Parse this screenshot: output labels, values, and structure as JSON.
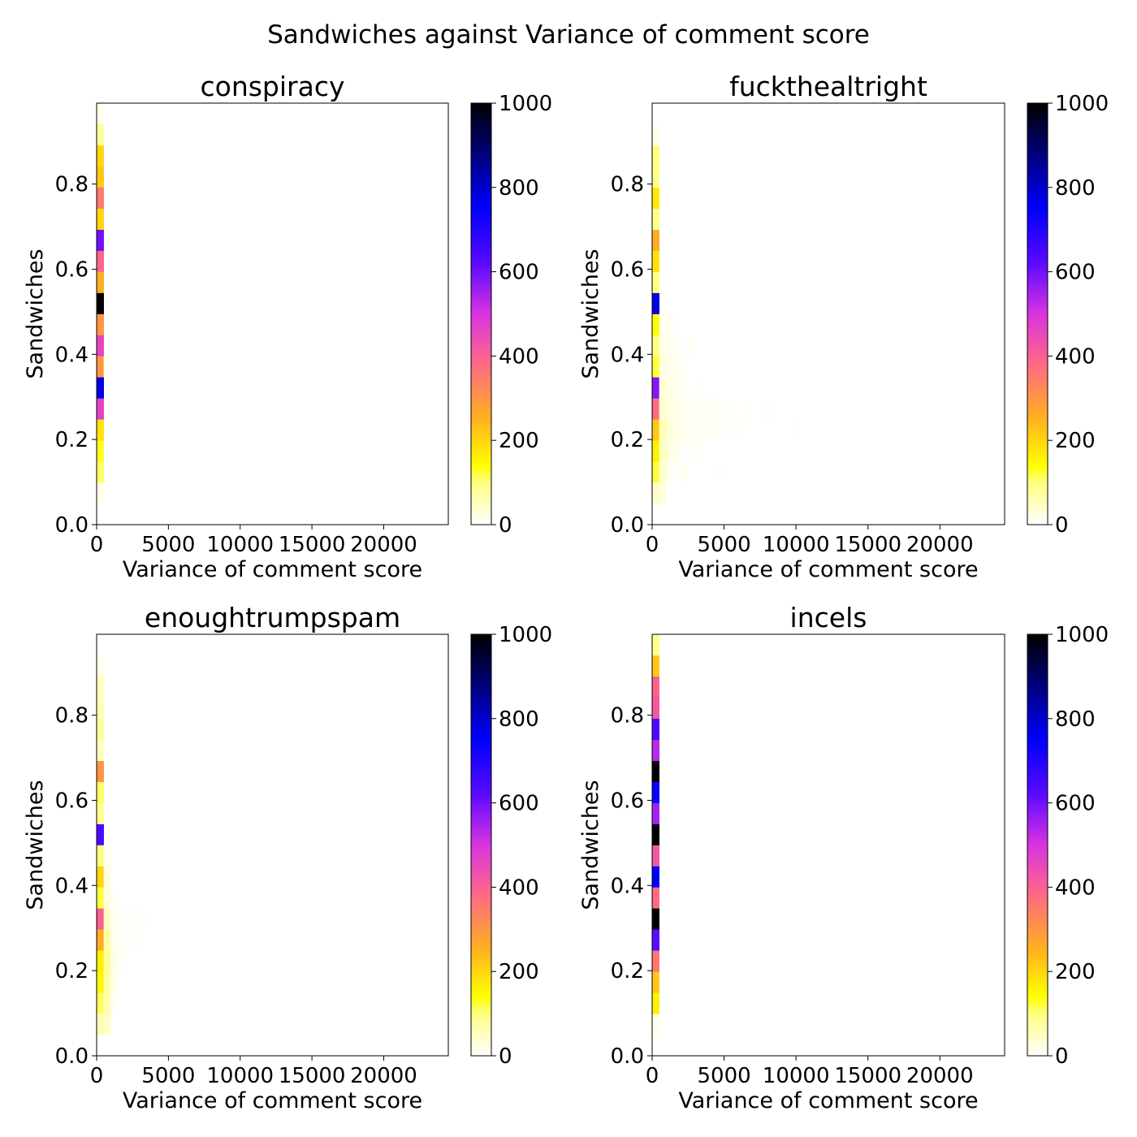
{
  "figure": {
    "title": "Sandwiches against Variance of comment score"
  },
  "chart_data": [
    {
      "type": "heatmap",
      "title": "conspiracy",
      "xlabel": "Variance of comment score",
      "ylabel": "Sandwiches",
      "xlim": [
        0,
        24500
      ],
      "ylim": [
        0,
        0.99
      ],
      "xticks": [
        0,
        5000,
        10000,
        15000,
        20000
      ],
      "xtick_labels": [
        "0",
        "5000",
        "10000",
        "15000",
        "20000"
      ],
      "yticks": [
        0.0,
        0.2,
        0.4,
        0.6,
        0.8
      ],
      "ytick_labels": [
        "0.0",
        "0.2",
        "0.4",
        "0.6",
        "0.8"
      ],
      "x_bin_width": 490,
      "y_bin_width": 0.0495,
      "colorbar": {
        "min": 0,
        "max": 1000,
        "ticks": [
          0,
          200,
          400,
          600,
          800,
          1000
        ],
        "tick_labels": [
          "0",
          "200",
          "400",
          "600",
          "800",
          "1000"
        ],
        "colormap": "gnuplot2_r"
      },
      "cells": [
        {
          "x0": 0,
          "y0": 0.0495,
          "count": 20
        },
        {
          "x0": 0,
          "y0": 0.099,
          "count": 110
        },
        {
          "x0": 0,
          "y0": 0.1485,
          "count": 130
        },
        {
          "x0": 0,
          "y0": 0.198,
          "count": 180
        },
        {
          "x0": 0,
          "y0": 0.2475,
          "count": 470
        },
        {
          "x0": 0,
          "y0": 0.297,
          "count": 780
        },
        {
          "x0": 0,
          "y0": 0.3465,
          "count": 300
        },
        {
          "x0": 0,
          "y0": 0.396,
          "count": 460
        },
        {
          "x0": 0,
          "y0": 0.4455,
          "count": 300
        },
        {
          "x0": 0,
          "y0": 0.495,
          "count": 1000
        },
        {
          "x0": 0,
          "y0": 0.5445,
          "count": 260
        },
        {
          "x0": 0,
          "y0": 0.594,
          "count": 390
        },
        {
          "x0": 0,
          "y0": 0.6435,
          "count": 600
        },
        {
          "x0": 0,
          "y0": 0.693,
          "count": 200
        },
        {
          "x0": 0,
          "y0": 0.7425,
          "count": 350
        },
        {
          "x0": 0,
          "y0": 0.792,
          "count": 220
        },
        {
          "x0": 0,
          "y0": 0.8415,
          "count": 200
        },
        {
          "x0": 0,
          "y0": 0.891,
          "count": 80
        },
        {
          "x0": 0,
          "y0": 0.9405,
          "count": 15
        },
        {
          "x0": 490,
          "y0": 0.3465,
          "count": 10
        }
      ]
    },
    {
      "type": "heatmap",
      "title": "fuckthealtright",
      "xlabel": "Variance of comment score",
      "ylabel": "Sandwiches",
      "xlim": [
        0,
        24500
      ],
      "ylim": [
        0,
        0.99
      ],
      "xticks": [
        0,
        5000,
        10000,
        15000,
        20000
      ],
      "xtick_labels": [
        "0",
        "5000",
        "10000",
        "15000",
        "20000"
      ],
      "yticks": [
        0.0,
        0.2,
        0.4,
        0.6,
        0.8
      ],
      "ytick_labels": [
        "0.0",
        "0.2",
        "0.4",
        "0.6",
        "0.8"
      ],
      "x_bin_width": 490,
      "y_bin_width": 0.0495,
      "colorbar": {
        "min": 0,
        "max": 1000,
        "ticks": [
          0,
          200,
          400,
          600,
          800,
          1000
        ],
        "tick_labels": [
          "0",
          "200",
          "400",
          "600",
          "800",
          "1000"
        ],
        "colormap": "gnuplot2_r"
      },
      "cells": [
        {
          "x0": 0,
          "y0": 0.0495,
          "count": 40
        },
        {
          "x0": 0,
          "y0": 0.099,
          "count": 120
        },
        {
          "x0": 0,
          "y0": 0.1485,
          "count": 160
        },
        {
          "x0": 0,
          "y0": 0.198,
          "count": 220
        },
        {
          "x0": 0,
          "y0": 0.2475,
          "count": 380
        },
        {
          "x0": 0,
          "y0": 0.297,
          "count": 580
        },
        {
          "x0": 0,
          "y0": 0.3465,
          "count": 120
        },
        {
          "x0": 0,
          "y0": 0.396,
          "count": 100
        },
        {
          "x0": 0,
          "y0": 0.4455,
          "count": 140
        },
        {
          "x0": 0,
          "y0": 0.495,
          "count": 780
        },
        {
          "x0": 0,
          "y0": 0.5445,
          "count": 100
        },
        {
          "x0": 0,
          "y0": 0.594,
          "count": 180
        },
        {
          "x0": 0,
          "y0": 0.6435,
          "count": 260
        },
        {
          "x0": 0,
          "y0": 0.693,
          "count": 90
        },
        {
          "x0": 0,
          "y0": 0.7425,
          "count": 170
        },
        {
          "x0": 0,
          "y0": 0.792,
          "count": 90
        },
        {
          "x0": 0,
          "y0": 0.8415,
          "count": 100
        },
        {
          "x0": 0,
          "y0": 0.891,
          "count": 20
        },
        {
          "x0": 490,
          "y0": 0.0495,
          "count": 30
        },
        {
          "x0": 490,
          "y0": 0.099,
          "count": 40
        },
        {
          "x0": 490,
          "y0": 0.1485,
          "count": 50
        },
        {
          "x0": 490,
          "y0": 0.198,
          "count": 60
        },
        {
          "x0": 490,
          "y0": 0.2475,
          "count": 40
        },
        {
          "x0": 490,
          "y0": 0.297,
          "count": 30
        },
        {
          "x0": 490,
          "y0": 0.3465,
          "count": 25
        },
        {
          "x0": 490,
          "y0": 0.396,
          "count": 20
        },
        {
          "x0": 490,
          "y0": 0.4455,
          "count": 15
        },
        {
          "x0": 980,
          "y0": 0.099,
          "count": 15
        },
        {
          "x0": 980,
          "y0": 0.1485,
          "count": 25
        },
        {
          "x0": 980,
          "y0": 0.198,
          "count": 30
        },
        {
          "x0": 980,
          "y0": 0.2475,
          "count": 25
        },
        {
          "x0": 980,
          "y0": 0.297,
          "count": 20
        },
        {
          "x0": 980,
          "y0": 0.3465,
          "count": 15
        },
        {
          "x0": 980,
          "y0": 0.396,
          "count": 12
        },
        {
          "x0": 980,
          "y0": 0.4455,
          "count": 10
        },
        {
          "x0": 1470,
          "y0": 0.1485,
          "count": 15
        },
        {
          "x0": 1470,
          "y0": 0.198,
          "count": 18
        },
        {
          "x0": 1470,
          "y0": 0.2475,
          "count": 15
        },
        {
          "x0": 1470,
          "y0": 0.297,
          "count": 12
        },
        {
          "x0": 1470,
          "y0": 0.3465,
          "count": 10
        },
        {
          "x0": 1470,
          "y0": 0.396,
          "count": 8
        },
        {
          "x0": 1960,
          "y0": 0.099,
          "count": 10
        },
        {
          "x0": 1960,
          "y0": 0.198,
          "count": 12
        },
        {
          "x0": 1960,
          "y0": 0.2475,
          "count": 10
        },
        {
          "x0": 1960,
          "y0": 0.297,
          "count": 8
        },
        {
          "x0": 1960,
          "y0": 0.3465,
          "count": 8
        },
        {
          "x0": 2450,
          "y0": 0.1485,
          "count": 8
        },
        {
          "x0": 2450,
          "y0": 0.198,
          "count": 10
        },
        {
          "x0": 2450,
          "y0": 0.2475,
          "count": 8
        },
        {
          "x0": 2450,
          "y0": 0.396,
          "count": 6
        },
        {
          "x0": 2940,
          "y0": 0.1485,
          "count": 6
        },
        {
          "x0": 2940,
          "y0": 0.198,
          "count": 8
        },
        {
          "x0": 2940,
          "y0": 0.2475,
          "count": 8
        },
        {
          "x0": 2940,
          "y0": 0.297,
          "count": 6
        },
        {
          "x0": 3430,
          "y0": 0.198,
          "count": 7
        },
        {
          "x0": 3430,
          "y0": 0.2475,
          "count": 6
        },
        {
          "x0": 3920,
          "y0": 0.198,
          "count": 6
        },
        {
          "x0": 3920,
          "y0": 0.2475,
          "count": 6
        },
        {
          "x0": 4410,
          "y0": 0.099,
          "count": 5
        },
        {
          "x0": 4410,
          "y0": 0.198,
          "count": 5
        },
        {
          "x0": 4410,
          "y0": 0.2475,
          "count": 6
        },
        {
          "x0": 4900,
          "y0": 0.198,
          "count": 5
        },
        {
          "x0": 5390,
          "y0": 0.2475,
          "count": 5
        },
        {
          "x0": 5880,
          "y0": 0.198,
          "count": 5
        },
        {
          "x0": 6370,
          "y0": 0.2475,
          "count": 4
        },
        {
          "x0": 7840,
          "y0": 0.2475,
          "count": 5
        },
        {
          "x0": 9800,
          "y0": 0.198,
          "count": 4
        }
      ]
    },
    {
      "type": "heatmap",
      "title": "enoughtrumpspam",
      "xlabel": "Variance of comment score",
      "ylabel": "Sandwiches",
      "xlim": [
        0,
        24500
      ],
      "ylim": [
        0,
        0.99
      ],
      "xticks": [
        0,
        5000,
        10000,
        15000,
        20000
      ],
      "xtick_labels": [
        "0",
        "5000",
        "10000",
        "15000",
        "20000"
      ],
      "yticks": [
        0.0,
        0.2,
        0.4,
        0.6,
        0.8
      ],
      "ytick_labels": [
        "0.0",
        "0.2",
        "0.4",
        "0.6",
        "0.8"
      ],
      "x_bin_width": 490,
      "y_bin_width": 0.0495,
      "colorbar": {
        "min": 0,
        "max": 1000,
        "ticks": [
          0,
          200,
          400,
          600,
          800,
          1000
        ],
        "tick_labels": [
          "0",
          "200",
          "400",
          "600",
          "800",
          "1000"
        ],
        "colormap": "gnuplot2_r"
      },
      "cells": [
        {
          "x0": 0,
          "y0": 0.0495,
          "count": 60
        },
        {
          "x0": 0,
          "y0": 0.099,
          "count": 110
        },
        {
          "x0": 0,
          "y0": 0.1485,
          "count": 150
        },
        {
          "x0": 0,
          "y0": 0.198,
          "count": 160
        },
        {
          "x0": 0,
          "y0": 0.2475,
          "count": 260
        },
        {
          "x0": 0,
          "y0": 0.297,
          "count": 400
        },
        {
          "x0": 0,
          "y0": 0.3465,
          "count": 120
        },
        {
          "x0": 0,
          "y0": 0.396,
          "count": 200
        },
        {
          "x0": 0,
          "y0": 0.4455,
          "count": 100
        },
        {
          "x0": 0,
          "y0": 0.495,
          "count": 640
        },
        {
          "x0": 0,
          "y0": 0.5445,
          "count": 90
        },
        {
          "x0": 0,
          "y0": 0.594,
          "count": 110
        },
        {
          "x0": 0,
          "y0": 0.6435,
          "count": 300
        },
        {
          "x0": 0,
          "y0": 0.693,
          "count": 50
        },
        {
          "x0": 0,
          "y0": 0.7425,
          "count": 80
        },
        {
          "x0": 0,
          "y0": 0.792,
          "count": 60
        },
        {
          "x0": 0,
          "y0": 0.8415,
          "count": 50
        },
        {
          "x0": 0,
          "y0": 0.891,
          "count": 15
        },
        {
          "x0": 490,
          "y0": 0.0495,
          "count": 45
        },
        {
          "x0": 490,
          "y0": 0.099,
          "count": 60
        },
        {
          "x0": 490,
          "y0": 0.1485,
          "count": 70
        },
        {
          "x0": 490,
          "y0": 0.198,
          "count": 80
        },
        {
          "x0": 490,
          "y0": 0.2475,
          "count": 70
        },
        {
          "x0": 490,
          "y0": 0.297,
          "count": 45
        },
        {
          "x0": 490,
          "y0": 0.3465,
          "count": 25
        },
        {
          "x0": 490,
          "y0": 0.396,
          "count": 25
        },
        {
          "x0": 490,
          "y0": 0.4455,
          "count": 12
        },
        {
          "x0": 980,
          "y0": 0.099,
          "count": 12
        },
        {
          "x0": 980,
          "y0": 0.1485,
          "count": 15
        },
        {
          "x0": 980,
          "y0": 0.198,
          "count": 18
        },
        {
          "x0": 980,
          "y0": 0.2475,
          "count": 12
        },
        {
          "x0": 980,
          "y0": 0.297,
          "count": 10
        },
        {
          "x0": 980,
          "y0": 0.3465,
          "count": 8
        },
        {
          "x0": 1470,
          "y0": 0.198,
          "count": 8
        },
        {
          "x0": 1470,
          "y0": 0.2475,
          "count": 7
        },
        {
          "x0": 1470,
          "y0": 0.297,
          "count": 6
        },
        {
          "x0": 1960,
          "y0": 0.2475,
          "count": 6
        },
        {
          "x0": 1960,
          "y0": 0.297,
          "count": 5
        },
        {
          "x0": 2450,
          "y0": 0.2475,
          "count": 5
        },
        {
          "x0": 2940,
          "y0": 0.297,
          "count": 4
        }
      ]
    },
    {
      "type": "heatmap",
      "title": "incels",
      "xlabel": "Variance of comment score",
      "ylabel": "Sandwiches",
      "xlim": [
        0,
        24500
      ],
      "ylim": [
        0,
        0.99
      ],
      "xticks": [
        0,
        5000,
        10000,
        15000,
        20000
      ],
      "xtick_labels": [
        "0",
        "5000",
        "10000",
        "15000",
        "20000"
      ],
      "yticks": [
        0.0,
        0.2,
        0.4,
        0.6,
        0.8
      ],
      "ytick_labels": [
        "0.0",
        "0.2",
        "0.4",
        "0.6",
        "0.8"
      ],
      "x_bin_width": 490,
      "y_bin_width": 0.0495,
      "colorbar": {
        "min": 0,
        "max": 1000,
        "ticks": [
          0,
          200,
          400,
          600,
          800,
          1000
        ],
        "tick_labels": [
          "0",
          "200",
          "400",
          "600",
          "800",
          "1000"
        ],
        "colormap": "gnuplot2_r"
      },
      "cells": [
        {
          "x0": 0,
          "y0": 0.0495,
          "count": 15
        },
        {
          "x0": 0,
          "y0": 0.099,
          "count": 160
        },
        {
          "x0": 0,
          "y0": 0.1485,
          "count": 220
        },
        {
          "x0": 0,
          "y0": 0.198,
          "count": 360
        },
        {
          "x0": 0,
          "y0": 0.2475,
          "count": 620
        },
        {
          "x0": 0,
          "y0": 0.297,
          "count": 1000
        },
        {
          "x0": 0,
          "y0": 0.3465,
          "count": 380
        },
        {
          "x0": 0,
          "y0": 0.396,
          "count": 760
        },
        {
          "x0": 0,
          "y0": 0.4455,
          "count": 420
        },
        {
          "x0": 0,
          "y0": 0.495,
          "count": 1000
        },
        {
          "x0": 0,
          "y0": 0.5445,
          "count": 550
        },
        {
          "x0": 0,
          "y0": 0.594,
          "count": 740
        },
        {
          "x0": 0,
          "y0": 0.6435,
          "count": 1000
        },
        {
          "x0": 0,
          "y0": 0.693,
          "count": 530
        },
        {
          "x0": 0,
          "y0": 0.7425,
          "count": 640
        },
        {
          "x0": 0,
          "y0": 0.792,
          "count": 420
        },
        {
          "x0": 0,
          "y0": 0.8415,
          "count": 400
        },
        {
          "x0": 0,
          "y0": 0.891,
          "count": 220
        },
        {
          "x0": 0,
          "y0": 0.9405,
          "count": 90
        }
      ]
    }
  ]
}
